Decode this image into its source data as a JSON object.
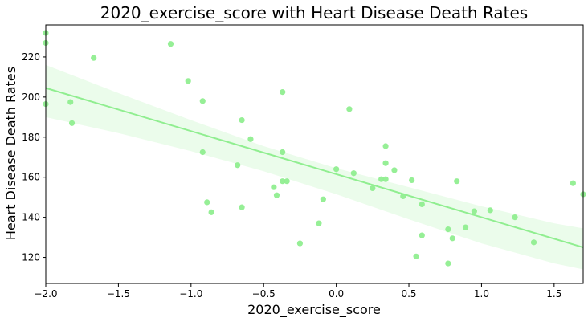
{
  "chart_data": {
    "type": "scatter",
    "title": "2020_exercise_score with Heart Disease Death Rates",
    "xlabel": "2020_exercise_score",
    "ylabel": "Heart Disease Death Rates",
    "xlim": [
      -2.0,
      1.7
    ],
    "ylim": [
      107,
      236
    ],
    "xticks": [
      -2.0,
      -1.5,
      -1.0,
      -0.5,
      0.0,
      0.5,
      1.0,
      1.5
    ],
    "xtick_labels": [
      "−2.0",
      "−1.5",
      "−1.0",
      "−0.5",
      "0.0",
      "0.5",
      "1.0",
      "1.5"
    ],
    "yticks": [
      120,
      140,
      160,
      180,
      200,
      220
    ],
    "ytick_labels": [
      "120",
      "140",
      "160",
      "180",
      "200",
      "220"
    ],
    "grid": false,
    "colors": {
      "points": "#90ee90",
      "regression_line": "#90ee90",
      "confidence_band": "#90ee90"
    },
    "points": [
      {
        "x": -2.0,
        "y": 232.0
      },
      {
        "x": -2.0,
        "y": 227.0
      },
      {
        "x": -2.0,
        "y": 196.5
      },
      {
        "x": -1.83,
        "y": 197.5
      },
      {
        "x": -1.82,
        "y": 187.0
      },
      {
        "x": -1.67,
        "y": 219.5
      },
      {
        "x": -1.14,
        "y": 226.5
      },
      {
        "x": -1.02,
        "y": 208.0
      },
      {
        "x": -0.92,
        "y": 198.0
      },
      {
        "x": -0.92,
        "y": 172.5
      },
      {
        "x": -0.89,
        "y": 147.5
      },
      {
        "x": -0.86,
        "y": 142.5
      },
      {
        "x": -0.68,
        "y": 166.0
      },
      {
        "x": -0.65,
        "y": 188.5
      },
      {
        "x": -0.65,
        "y": 145.0
      },
      {
        "x": -0.59,
        "y": 179.0
      },
      {
        "x": -0.43,
        "y": 155.0
      },
      {
        "x": -0.41,
        "y": 151.0
      },
      {
        "x": -0.37,
        "y": 202.5
      },
      {
        "x": -0.37,
        "y": 172.5
      },
      {
        "x": -0.37,
        "y": 158.0
      },
      {
        "x": -0.34,
        "y": 158.0
      },
      {
        "x": -0.25,
        "y": 127.0
      },
      {
        "x": -0.12,
        "y": 137.0
      },
      {
        "x": -0.09,
        "y": 149.0
      },
      {
        "x": 0.0,
        "y": 164.0
      },
      {
        "x": 0.09,
        "y": 194.0
      },
      {
        "x": 0.12,
        "y": 162.0
      },
      {
        "x": 0.25,
        "y": 154.5
      },
      {
        "x": 0.31,
        "y": 159.0
      },
      {
        "x": 0.34,
        "y": 175.5
      },
      {
        "x": 0.34,
        "y": 167.0
      },
      {
        "x": 0.34,
        "y": 159.0
      },
      {
        "x": 0.4,
        "y": 163.5
      },
      {
        "x": 0.46,
        "y": 150.5
      },
      {
        "x": 0.52,
        "y": 158.5
      },
      {
        "x": 0.55,
        "y": 120.5
      },
      {
        "x": 0.59,
        "y": 146.5
      },
      {
        "x": 0.59,
        "y": 131.0
      },
      {
        "x": 0.77,
        "y": 134.0
      },
      {
        "x": 0.77,
        "y": 117.0
      },
      {
        "x": 0.8,
        "y": 129.5
      },
      {
        "x": 0.83,
        "y": 158.0
      },
      {
        "x": 0.89,
        "y": 135.0
      },
      {
        "x": 0.95,
        "y": 143.0
      },
      {
        "x": 1.06,
        "y": 143.5
      },
      {
        "x": 1.23,
        "y": 140.0
      },
      {
        "x": 1.36,
        "y": 127.5
      },
      {
        "x": 1.63,
        "y": 157.0
      },
      {
        "x": 1.7,
        "y": 151.5
      }
    ],
    "regression": {
      "x": [
        -2.0,
        1.7
      ],
      "y": [
        204.5,
        125.0
      ]
    },
    "confidence_band": {
      "x": [
        -2.0,
        -1.5,
        -1.0,
        -0.5,
        0.0,
        0.5,
        1.0,
        1.5,
        1.7
      ],
      "upper": [
        216.0,
        202.0,
        188.5,
        175.5,
        164.5,
        155.0,
        145.5,
        137.0,
        134.5
      ],
      "lower": [
        190.0,
        182.0,
        173.0,
        163.0,
        151.5,
        139.0,
        127.0,
        117.0,
        114.0
      ]
    }
  }
}
